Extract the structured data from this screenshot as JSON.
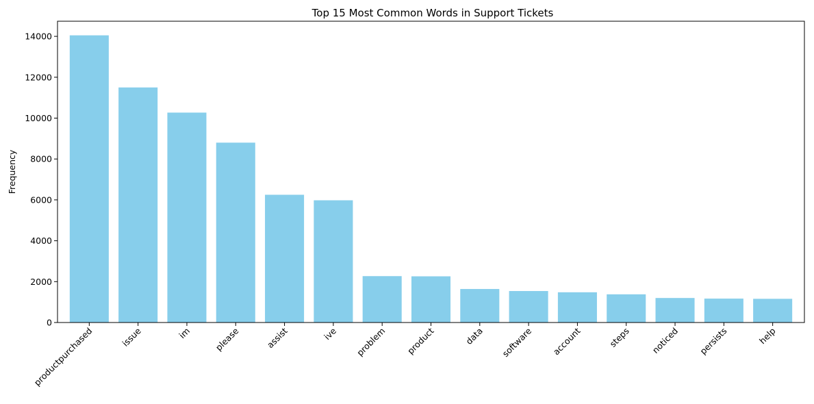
{
  "chart_data": {
    "type": "bar",
    "title": "Top 15 Most Common Words in Support Tickets",
    "xlabel": "",
    "ylabel": "Frequency",
    "categories": [
      "productpurchased",
      "issue",
      "im",
      "please",
      "assist",
      "ive",
      "problem",
      "product",
      "data",
      "software",
      "account",
      "steps",
      "noticed",
      "persists",
      "help"
    ],
    "values": [
      14050,
      11500,
      10270,
      8800,
      6250,
      5980,
      2270,
      2260,
      1640,
      1540,
      1480,
      1380,
      1200,
      1170,
      1160
    ],
    "ylim": [
      0,
      14740
    ],
    "yticks": [
      0,
      2000,
      4000,
      6000,
      8000,
      10000,
      12000,
      14000
    ],
    "ytick_labels": [
      "0",
      "2000",
      "4000",
      "6000",
      "8000",
      "10000",
      "12000",
      "14000"
    ],
    "bar_color": "#87ceeb",
    "grid": false,
    "legend": "none"
  }
}
